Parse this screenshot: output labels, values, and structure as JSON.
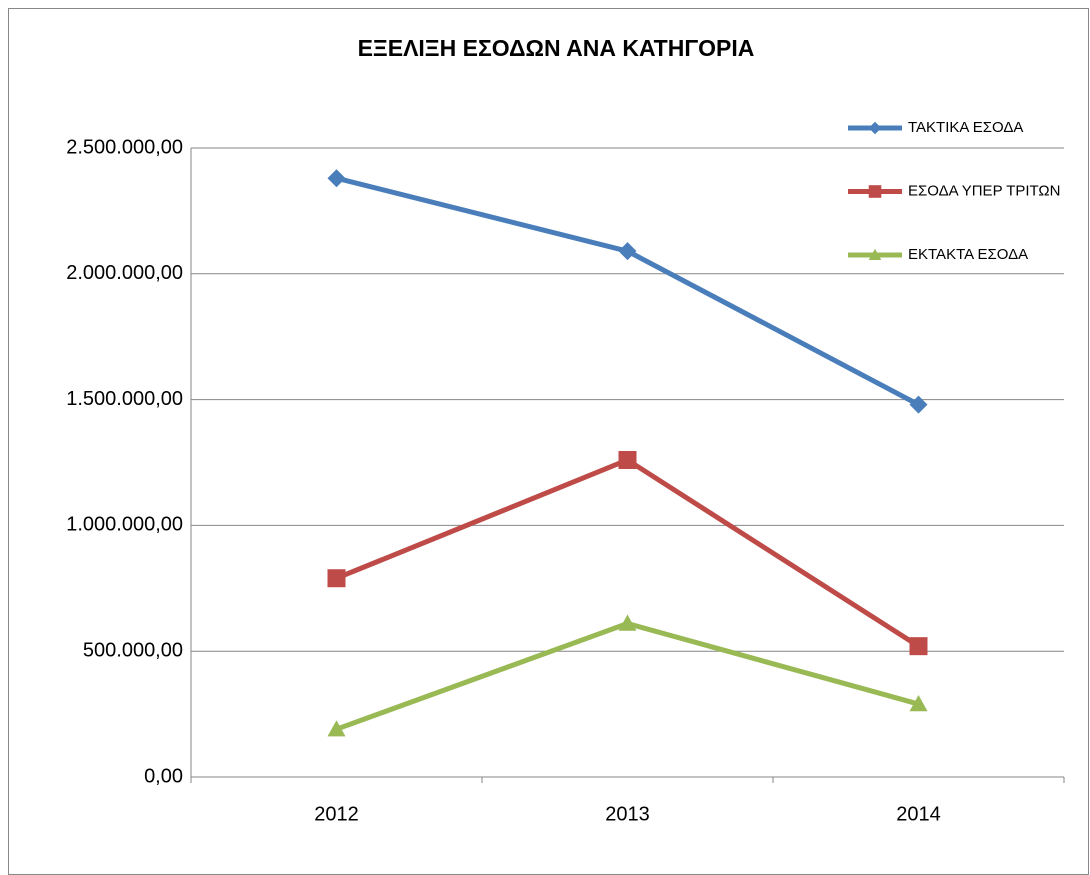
{
  "chart_data": {
    "type": "line",
    "title": "ΕΞΕΛΙΞΗ ΕΣΟΔΩΝ ΑΝΑ ΚΑΤΗΓΟΡΙΑ",
    "categories": [
      "2012",
      "2013",
      "2014"
    ],
    "series": [
      {
        "name": "ΤΑΚΤΙΚΑ ΕΣΟΔΑ",
        "color": "#4a7ebb",
        "marker": "diamond",
        "values": [
          2380000,
          2090000,
          1480000
        ]
      },
      {
        "name": "ΕΣΟΔΑ ΥΠΕΡ ΤΡΙΤΩΝ",
        "color": "#be4b48",
        "marker": "square",
        "values": [
          790000,
          1260000,
          520000
        ]
      },
      {
        "name": "ΕΚΤΑΚΤΑ ΕΣΟΔΑ",
        "color": "#98b954",
        "marker": "triangle",
        "values": [
          190000,
          610000,
          290000
        ]
      }
    ],
    "ylim": [
      0,
      2500000
    ],
    "yticks": [
      {
        "value": 0,
        "label": "0,00"
      },
      {
        "value": 500000,
        "label": "500.000,00"
      },
      {
        "value": 1000000,
        "label": "1.000.000,00"
      },
      {
        "value": 1500000,
        "label": "1.500.000,00"
      },
      {
        "value": 2000000,
        "label": "2.000.000,00"
      },
      {
        "value": 2500000,
        "label": "2.500.000,00"
      }
    ],
    "grid": true,
    "legend": "right"
  }
}
